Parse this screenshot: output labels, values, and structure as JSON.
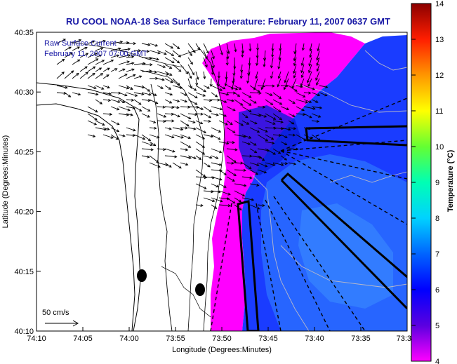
{
  "title": "RU COOL  NOAA-18  Sea Surface Temperature:  February 11, 2007 0637 GMT",
  "legend": {
    "line1": "Raw Surface Current",
    "line2": "February 11, 2007 07:00 GMT"
  },
  "scale_label": "50 cm/s",
  "xlabel": "Longitude (Degrees:Minutes)",
  "ylabel": "Latitude (Degrees:Minutes)",
  "colorbar": {
    "label": "Temperature (°C)",
    "min": 4,
    "max": 14,
    "ticks": [
      "4",
      "5",
      "6",
      "7",
      "8",
      "9",
      "10",
      "11",
      "12",
      "13",
      "14"
    ],
    "colors": [
      "#ff00ff",
      "#5a00e0",
      "#0000ff",
      "#0064ff",
      "#00d2ff",
      "#00ffb4",
      "#64ff32",
      "#ffff00",
      "#ff9600",
      "#ff1e00",
      "#8b0000"
    ]
  },
  "x_ticks": [
    "74:10",
    "74:05",
    "74:00",
    "73:55",
    "73:50",
    "73:45",
    "73:40",
    "73:35",
    "73:3"
  ],
  "y_ticks": [
    "40:35",
    "40:30",
    "40:25",
    "40:20",
    "40:15",
    "40:10"
  ],
  "colors": {
    "magenta": "#ff00ff",
    "blue": "#1a3cff",
    "mid_blue": "#2a6cff",
    "title": "#1a1aa6"
  }
}
